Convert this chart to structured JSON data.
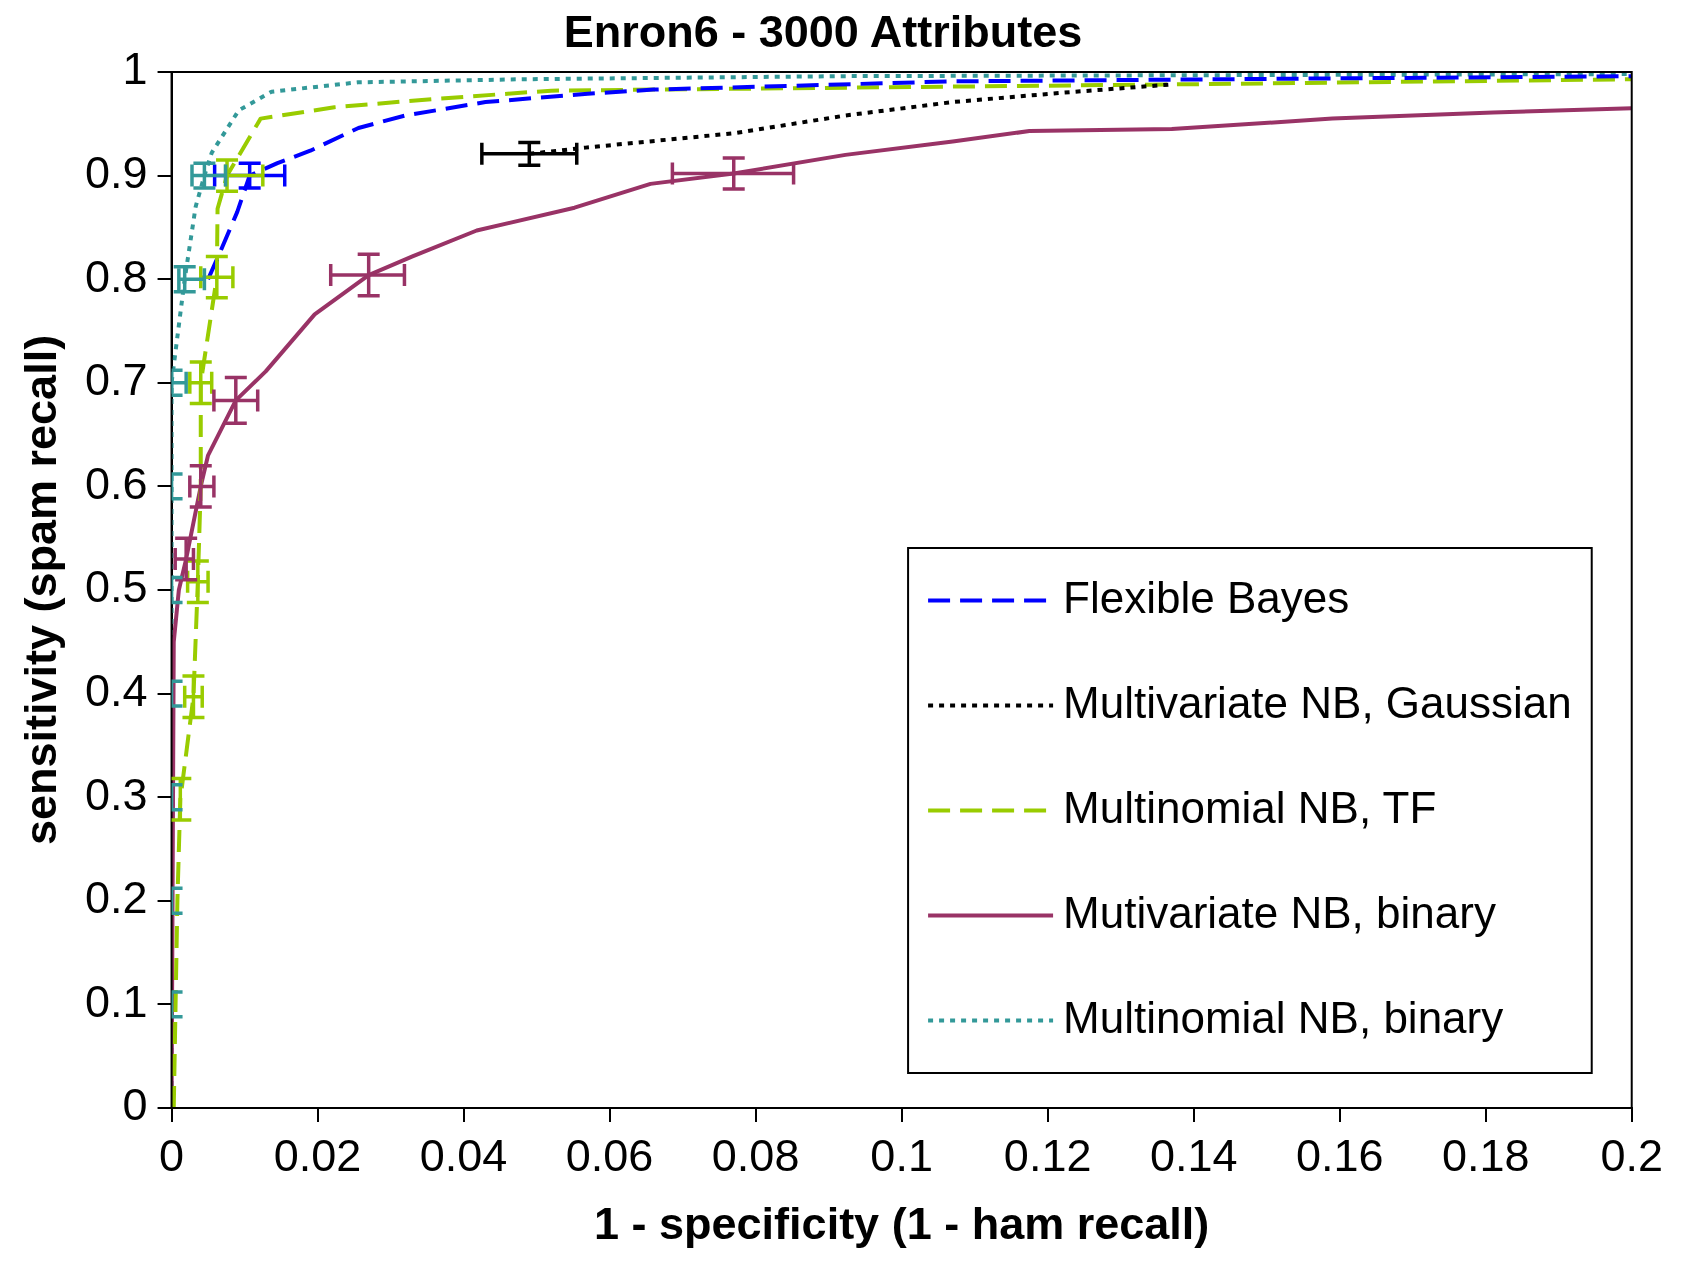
{
  "chart_data": {
    "type": "line",
    "title": "Enron6 - 3000 Attributes",
    "xlabel": "1 - specificity (1 - ham recall)",
    "ylabel": "sensitivity (spam recall)",
    "xlim": [
      0,
      0.2
    ],
    "xticks": [
      0,
      0.02,
      0.04,
      0.06,
      0.08,
      0.1,
      0.12,
      0.14,
      0.16,
      0.18,
      0.2
    ],
    "ylim": [
      0,
      1
    ],
    "yticks": [
      0,
      0.1,
      0.2,
      0.3,
      0.4,
      0.5,
      0.6,
      0.7,
      0.8,
      0.9,
      1
    ],
    "grid": false,
    "legend": "bottom right",
    "series": [
      {
        "name": "Flexible Bayes",
        "color": "#0000ff",
        "line_style": "dashed",
        "x": [
          0.005,
          0.0067,
          0.009,
          0.0107,
          0.0145,
          0.019,
          0.0256,
          0.032,
          0.043,
          0.057,
          0.066,
          0.107,
          0.2
        ],
        "values": [
          0.8,
          0.827,
          0.865,
          0.9,
          0.912,
          0.924,
          0.946,
          0.958,
          0.971,
          0.979,
          0.983,
          0.991,
          0.996
        ],
        "errors": [
          null,
          null,
          null,
          0.012,
          null,
          null,
          null,
          null,
          null,
          null,
          null,
          null,
          null
        ],
        "xerrors": [
          null,
          null,
          null,
          0.0048,
          null,
          null,
          null,
          null,
          null,
          null,
          null,
          null,
          null
        ]
      },
      {
        "name": "Multivariate NB, Gaussian",
        "color": "#000000",
        "line_style": "dotted",
        "x": [
          0.049,
          0.0567,
          0.0772,
          0.0923,
          0.107,
          0.122,
          0.137
        ],
        "values": [
          0.921,
          0.927,
          0.941,
          0.958,
          0.971,
          0.98,
          0.988
        ],
        "errors": [
          0.011,
          null,
          null,
          null,
          null,
          null,
          null
        ],
        "xerrors": [
          0.0065,
          null,
          null,
          null,
          null,
          null,
          null
        ]
      },
      {
        "name": "Multinomial NB, TF",
        "color": "#99cc00",
        "line_style": "dashed",
        "x": [
          0.0003,
          0.0008,
          0.0012,
          0.003,
          0.0036,
          0.004,
          0.004,
          0.0062,
          0.0063,
          0.0076,
          0.0122,
          0.015,
          0.0223,
          0.036,
          0.052,
          0.137,
          0.2
        ],
        "values": [
          0,
          0.2,
          0.298,
          0.397,
          0.508,
          0.6,
          0.7,
          0.802,
          0.868,
          0.9,
          0.955,
          0.958,
          0.966,
          0.974,
          0.982,
          0.988,
          0.993
        ],
        "errors": [
          null,
          null,
          0.02,
          0.02,
          0.02,
          null,
          0.02,
          0.02,
          null,
          0.015,
          null,
          null,
          null,
          null,
          null,
          null,
          null
        ],
        "xerrors": [
          null,
          null,
          null,
          [
            0.0018,
            0.0042
          ],
          [
            0.0022,
            0.005
          ],
          null,
          [
            0.0025,
            0.0055
          ],
          [
            0.004,
            0.0084
          ],
          null,
          [
            0.0074,
            0.0125
          ],
          null,
          null,
          null,
          null,
          null,
          null,
          null
        ]
      },
      {
        "name": "Mutivariate NB, binary",
        "color": "#993366",
        "line_style": "solid",
        "x": [
          0,
          0.0003,
          0.001,
          0.002,
          0.004,
          0.005,
          0.0088,
          0.0129,
          0.0196,
          0.027,
          0.033,
          0.0418,
          0.0552,
          0.0656,
          0.077,
          0.0923,
          0.107,
          0.1175,
          0.137,
          0.159,
          0.181,
          0.2
        ],
        "values": [
          0,
          0.45,
          0.5,
          0.53,
          0.6,
          0.63,
          0.683,
          0.711,
          0.766,
          0.804,
          0.822,
          0.847,
          0.869,
          0.892,
          0.902,
          0.92,
          0.933,
          0.943,
          0.945,
          0.955,
          0.961,
          0.965
        ],
        "errors": [
          null,
          null,
          null,
          0.02,
          0.02,
          null,
          0.022,
          null,
          null,
          0.02,
          null,
          null,
          null,
          null,
          0.015,
          null,
          null,
          null,
          null,
          null,
          null,
          null
        ],
        "xerrors": [
          null,
          null,
          null,
          [
            0.0005,
            0.003
          ],
          [
            0.0025,
            0.0058
          ],
          null,
          [
            0.0058,
            0.0118
          ],
          null,
          null,
          [
            0.0218,
            0.0319
          ],
          null,
          null,
          null,
          null,
          [
            0.0686,
            0.0852
          ],
          null,
          null,
          null,
          null,
          null,
          null,
          null
        ]
      },
      {
        "name": "Multinomial NB, binary",
        "color": "#339999",
        "line_style": "dotted",
        "x": [
          0,
          0,
          0,
          0,
          0,
          0,
          0,
          0,
          0.0018,
          0.0033,
          0.0045,
          0.0055,
          0.0092,
          0.0137,
          0.0255,
          0.048,
          0.092,
          0.2
        ],
        "values": [
          0,
          0.1,
          0.2,
          0.3,
          0.4,
          0.5,
          0.6,
          0.7,
          0.8,
          0.87,
          0.9,
          0.922,
          0.963,
          0.981,
          0.99,
          0.993,
          0.996,
          0.998
        ],
        "errors": [
          null,
          0.012,
          0.012,
          0.012,
          0.012,
          0.012,
          0.012,
          0.012,
          0.012,
          null,
          0.012,
          null,
          null,
          null,
          null,
          null,
          null,
          null
        ],
        "xerrors": [
          null,
          null,
          null,
          null,
          null,
          null,
          null,
          [
            0,
            0.002
          ],
          [
            0.001,
            0.0045
          ],
          null,
          [
            0.0028,
            0.0074
          ],
          null,
          null,
          null,
          null,
          null,
          null,
          null
        ]
      }
    ]
  }
}
